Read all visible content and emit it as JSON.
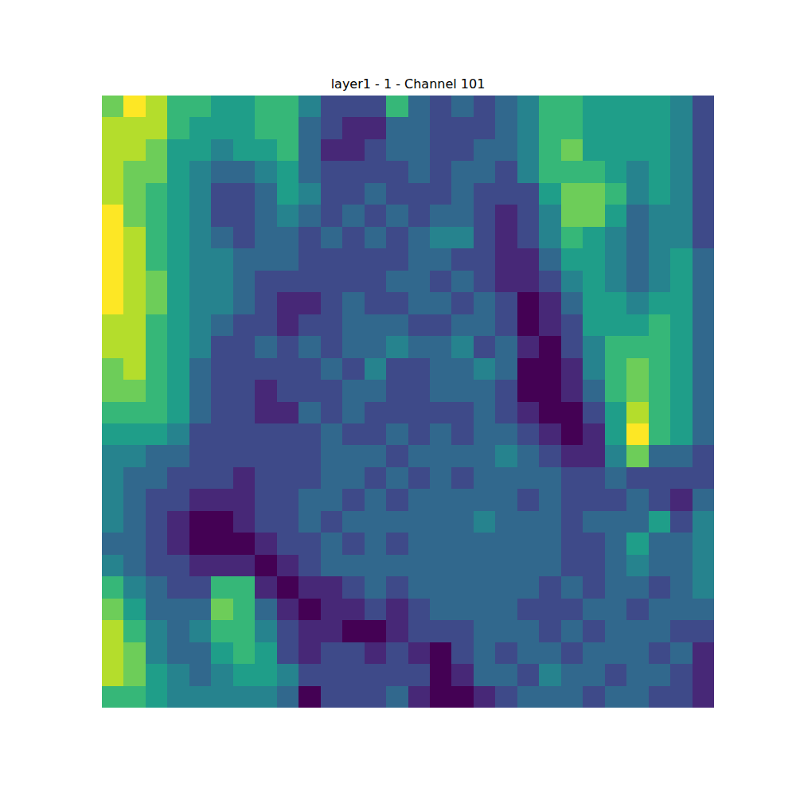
{
  "chart_data": {
    "type": "heatmap",
    "title": "layer1 - 1 - Channel 101",
    "color": "viridis",
    "zlim": [
      0,
      9
    ],
    "tick_labels": false,
    "cells": [
      [
        7,
        9,
        8,
        6,
        6,
        5,
        5,
        6,
        6,
        4,
        2,
        2,
        2,
        6,
        3,
        2,
        3,
        2,
        3,
        4,
        6,
        6,
        5,
        5,
        5,
        5,
        4,
        2
      ],
      [
        8,
        8,
        8,
        6,
        5,
        5,
        5,
        6,
        6,
        3,
        2,
        1,
        1,
        3,
        3,
        2,
        2,
        2,
        3,
        4,
        6,
        6,
        5,
        5,
        5,
        5,
        4,
        2
      ],
      [
        8,
        8,
        7,
        5,
        5,
        4,
        5,
        5,
        6,
        3,
        1,
        1,
        2,
        3,
        3,
        2,
        2,
        3,
        3,
        4,
        6,
        7,
        5,
        5,
        5,
        5,
        4,
        2
      ],
      [
        8,
        7,
        7,
        5,
        4,
        3,
        3,
        4,
        5,
        3,
        2,
        2,
        2,
        2,
        3,
        2,
        3,
        3,
        2,
        4,
        6,
        6,
        6,
        5,
        4,
        5,
        4,
        2
      ],
      [
        8,
        7,
        6,
        5,
        4,
        2,
        2,
        3,
        5,
        4,
        2,
        2,
        3,
        2,
        2,
        2,
        3,
        2,
        2,
        2,
        5,
        7,
        7,
        6,
        4,
        5,
        4,
        2
      ],
      [
        9,
        7,
        6,
        5,
        4,
        2,
        2,
        3,
        4,
        3,
        2,
        3,
        2,
        3,
        2,
        3,
        3,
        2,
        1,
        2,
        4,
        7,
        7,
        5,
        3,
        4,
        4,
        2
      ],
      [
        9,
        8,
        6,
        5,
        4,
        3,
        2,
        3,
        3,
        2,
        3,
        2,
        3,
        2,
        3,
        4,
        4,
        2,
        1,
        2,
        4,
        6,
        5,
        4,
        3,
        4,
        4,
        2
      ],
      [
        9,
        8,
        6,
        5,
        4,
        4,
        3,
        3,
        3,
        2,
        2,
        2,
        2,
        2,
        3,
        3,
        2,
        2,
        1,
        1,
        3,
        5,
        5,
        4,
        3,
        4,
        5,
        3
      ],
      [
        9,
        8,
        7,
        5,
        4,
        4,
        3,
        2,
        2,
        2,
        2,
        2,
        2,
        3,
        3,
        2,
        3,
        2,
        1,
        1,
        2,
        4,
        5,
        4,
        3,
        4,
        5,
        3
      ],
      [
        9,
        8,
        7,
        5,
        4,
        4,
        3,
        2,
        1,
        1,
        2,
        3,
        2,
        2,
        3,
        3,
        2,
        3,
        2,
        0,
        1,
        3,
        5,
        5,
        4,
        5,
        5,
        3
      ],
      [
        8,
        8,
        6,
        5,
        4,
        3,
        2,
        2,
        1,
        2,
        2,
        3,
        3,
        3,
        2,
        2,
        3,
        3,
        2,
        0,
        1,
        2,
        5,
        5,
        5,
        6,
        5,
        3
      ],
      [
        8,
        8,
        6,
        5,
        4,
        2,
        2,
        3,
        2,
        3,
        2,
        3,
        3,
        4,
        3,
        3,
        4,
        2,
        3,
        1,
        0,
        2,
        4,
        6,
        6,
        6,
        5,
        3
      ],
      [
        7,
        8,
        6,
        5,
        3,
        2,
        2,
        2,
        2,
        2,
        3,
        2,
        4,
        2,
        2,
        3,
        3,
        4,
        3,
        0,
        0,
        1,
        4,
        6,
        7,
        6,
        5,
        3
      ],
      [
        7,
        7,
        6,
        5,
        3,
        2,
        2,
        1,
        2,
        2,
        2,
        3,
        3,
        2,
        2,
        3,
        3,
        3,
        2,
        0,
        0,
        1,
        3,
        6,
        7,
        6,
        5,
        3
      ],
      [
        6,
        6,
        6,
        5,
        3,
        2,
        2,
        1,
        1,
        3,
        2,
        3,
        2,
        2,
        2,
        2,
        2,
        3,
        2,
        1,
        0,
        0,
        2,
        5,
        8,
        6,
        5,
        3
      ],
      [
        5,
        5,
        5,
        4,
        2,
        2,
        2,
        2,
        2,
        2,
        3,
        2,
        2,
        3,
        2,
        3,
        2,
        3,
        3,
        2,
        1,
        0,
        1,
        5,
        9,
        6,
        5,
        3
      ],
      [
        4,
        4,
        3,
        3,
        2,
        2,
        2,
        2,
        2,
        2,
        3,
        3,
        3,
        2,
        3,
        3,
        3,
        3,
        4,
        3,
        2,
        1,
        1,
        4,
        7,
        3,
        3,
        2
      ],
      [
        4,
        3,
        3,
        2,
        2,
        2,
        1,
        2,
        2,
        2,
        3,
        3,
        2,
        3,
        2,
        3,
        2,
        3,
        3,
        3,
        3,
        2,
        2,
        3,
        2,
        2,
        2,
        2
      ],
      [
        4,
        3,
        2,
        2,
        1,
        1,
        1,
        2,
        2,
        3,
        3,
        2,
        3,
        2,
        3,
        3,
        3,
        3,
        3,
        2,
        3,
        2,
        2,
        2,
        3,
        2,
        1,
        3
      ],
      [
        4,
        3,
        2,
        1,
        0,
        0,
        1,
        2,
        2,
        3,
        2,
        3,
        3,
        3,
        3,
        3,
        3,
        4,
        3,
        3,
        3,
        2,
        3,
        3,
        3,
        5,
        2,
        4
      ],
      [
        3,
        3,
        2,
        1,
        0,
        0,
        0,
        1,
        2,
        2,
        3,
        2,
        3,
        2,
        3,
        3,
        3,
        3,
        3,
        3,
        3,
        2,
        2,
        3,
        5,
        3,
        3,
        4
      ],
      [
        4,
        3,
        2,
        2,
        1,
        1,
        1,
        0,
        1,
        2,
        3,
        3,
        3,
        3,
        3,
        3,
        3,
        3,
        3,
        3,
        3,
        2,
        2,
        3,
        4,
        3,
        3,
        4
      ],
      [
        6,
        4,
        3,
        2,
        2,
        6,
        6,
        1,
        0,
        1,
        1,
        2,
        3,
        2,
        3,
        3,
        3,
        3,
        3,
        3,
        2,
        3,
        2,
        3,
        3,
        2,
        3,
        4
      ],
      [
        7,
        5,
        3,
        3,
        3,
        7,
        6,
        3,
        1,
        0,
        1,
        1,
        2,
        1,
        2,
        3,
        3,
        3,
        3,
        2,
        2,
        2,
        3,
        3,
        2,
        3,
        3,
        3
      ],
      [
        8,
        6,
        4,
        3,
        4,
        6,
        6,
        4,
        2,
        1,
        1,
        0,
        0,
        1,
        2,
        2,
        2,
        3,
        3,
        3,
        2,
        3,
        2,
        3,
        3,
        3,
        2,
        2
      ],
      [
        8,
        7,
        4,
        3,
        3,
        5,
        6,
        5,
        2,
        1,
        2,
        2,
        1,
        2,
        1,
        0,
        2,
        3,
        2,
        3,
        3,
        2,
        3,
        3,
        3,
        2,
        3,
        1
      ],
      [
        8,
        7,
        5,
        4,
        3,
        4,
        5,
        5,
        4,
        2,
        2,
        2,
        2,
        2,
        2,
        0,
        1,
        3,
        3,
        2,
        4,
        3,
        3,
        2,
        3,
        3,
        2,
        1
      ],
      [
        6,
        6,
        5,
        4,
        4,
        4,
        4,
        4,
        3,
        0,
        2,
        2,
        2,
        3,
        1,
        0,
        0,
        1,
        2,
        3,
        3,
        3,
        2,
        3,
        3,
        2,
        2,
        1
      ]
    ]
  }
}
